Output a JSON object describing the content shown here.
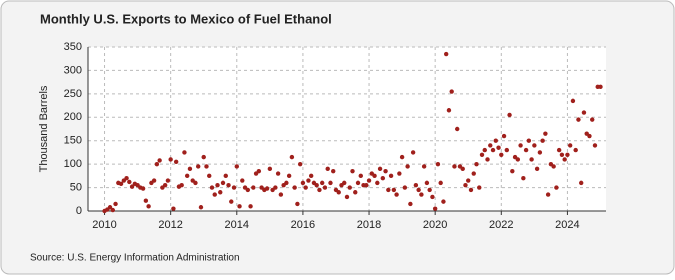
{
  "chart_data": {
    "type": "scatter",
    "title": "Monthly U.S. Exports to Mexico of Fuel Ethanol",
    "ylabel": "Thousand Barrels",
    "source": "Source: U.S. Energy Information Administration",
    "color": "#a0201c",
    "grid": true,
    "xlim": [
      "2009-07",
      "2025-03"
    ],
    "xticks": [
      "2010",
      "2012",
      "2014",
      "2016",
      "2018",
      "2020",
      "2022",
      "2024"
    ],
    "ylim": [
      0,
      350
    ],
    "yticks": [
      0,
      50,
      100,
      150,
      200,
      250,
      300,
      350
    ],
    "x": [
      "2010-01",
      "2010-02",
      "2010-03",
      "2010-04",
      "2010-05",
      "2010-06",
      "2010-07",
      "2010-08",
      "2010-09",
      "2010-10",
      "2010-11",
      "2010-12",
      "2011-01",
      "2011-02",
      "2011-03",
      "2011-04",
      "2011-05",
      "2011-06",
      "2011-07",
      "2011-08",
      "2011-09",
      "2011-10",
      "2011-11",
      "2011-12",
      "2012-01",
      "2012-02",
      "2012-03",
      "2012-04",
      "2012-05",
      "2012-06",
      "2012-07",
      "2012-08",
      "2012-09",
      "2012-10",
      "2012-11",
      "2012-12",
      "2013-01",
      "2013-02",
      "2013-03",
      "2013-04",
      "2013-05",
      "2013-06",
      "2013-07",
      "2013-08",
      "2013-09",
      "2013-10",
      "2013-11",
      "2013-12",
      "2014-01",
      "2014-02",
      "2014-03",
      "2014-04",
      "2014-05",
      "2014-06",
      "2014-07",
      "2014-08",
      "2014-09",
      "2014-10",
      "2014-11",
      "2014-12",
      "2015-01",
      "2015-02",
      "2015-03",
      "2015-04",
      "2015-05",
      "2015-06",
      "2015-07",
      "2015-08",
      "2015-09",
      "2015-10",
      "2015-11",
      "2015-12",
      "2016-01",
      "2016-02",
      "2016-03",
      "2016-04",
      "2016-05",
      "2016-06",
      "2016-07",
      "2016-08",
      "2016-09",
      "2016-10",
      "2016-11",
      "2016-12",
      "2017-01",
      "2017-02",
      "2017-03",
      "2017-04",
      "2017-05",
      "2017-06",
      "2017-07",
      "2017-08",
      "2017-09",
      "2017-10",
      "2017-11",
      "2017-12",
      "2018-01",
      "2018-02",
      "2018-03",
      "2018-04",
      "2018-05",
      "2018-06",
      "2018-07",
      "2018-08",
      "2018-09",
      "2018-10",
      "2018-11",
      "2018-12",
      "2019-01",
      "2019-02",
      "2019-03",
      "2019-04",
      "2019-05",
      "2019-06",
      "2019-07",
      "2019-08",
      "2019-09",
      "2019-10",
      "2019-11",
      "2019-12",
      "2020-01",
      "2020-02",
      "2020-03",
      "2020-04",
      "2020-05",
      "2020-06",
      "2020-07",
      "2020-08",
      "2020-09",
      "2020-10",
      "2020-11",
      "2020-12",
      "2021-01",
      "2021-02",
      "2021-03",
      "2021-04",
      "2021-05",
      "2021-06",
      "2021-07",
      "2021-08",
      "2021-09",
      "2021-10",
      "2021-11",
      "2021-12",
      "2022-01",
      "2022-02",
      "2022-03",
      "2022-04",
      "2022-05",
      "2022-06",
      "2022-07",
      "2022-08",
      "2022-09",
      "2022-10",
      "2022-11",
      "2022-12",
      "2023-01",
      "2023-02",
      "2023-03",
      "2023-04",
      "2023-05",
      "2023-06",
      "2023-07",
      "2023-08",
      "2023-09",
      "2023-10",
      "2023-11",
      "2023-12",
      "2024-01",
      "2024-02",
      "2024-03",
      "2024-04",
      "2024-05",
      "2024-06",
      "2024-07",
      "2024-08",
      "2024-09",
      "2024-10",
      "2024-11",
      "2024-12",
      "2025-01"
    ],
    "values": [
      0,
      3,
      8,
      2,
      15,
      60,
      58,
      65,
      70,
      62,
      52,
      58,
      55,
      50,
      48,
      22,
      10,
      60,
      65,
      100,
      108,
      50,
      55,
      65,
      110,
      5,
      105,
      52,
      55,
      125,
      75,
      90,
      65,
      60,
      95,
      8,
      115,
      95,
      75,
      50,
      35,
      55,
      40,
      60,
      75,
      55,
      20,
      50,
      95,
      10,
      65,
      50,
      45,
      10,
      50,
      80,
      85,
      50,
      45,
      48,
      90,
      45,
      50,
      80,
      35,
      55,
      60,
      75,
      115,
      50,
      15,
      100,
      60,
      50,
      65,
      75,
      60,
      55,
      45,
      60,
      50,
      90,
      60,
      85,
      45,
      40,
      55,
      60,
      30,
      50,
      85,
      40,
      60,
      75,
      55,
      55,
      65,
      80,
      75,
      60,
      90,
      70,
      85,
      45,
      75,
      45,
      35,
      80,
      115,
      50,
      95,
      15,
      125,
      55,
      45,
      35,
      95,
      60,
      45,
      30,
      5,
      100,
      60,
      20,
      335,
      215,
      255,
      95,
      175,
      95,
      90,
      55,
      65,
      45,
      80,
      100,
      50,
      120,
      130,
      110,
      140,
      130,
      150,
      135,
      120,
      160,
      130,
      205,
      85,
      115,
      110,
      140,
      70,
      130,
      150,
      110,
      140,
      90,
      125,
      150,
      165,
      35,
      100,
      95,
      50,
      130,
      120,
      110,
      120,
      140,
      235,
      130,
      195,
      60,
      210,
      165,
      160,
      195,
      140,
      265,
      265
    ]
  }
}
